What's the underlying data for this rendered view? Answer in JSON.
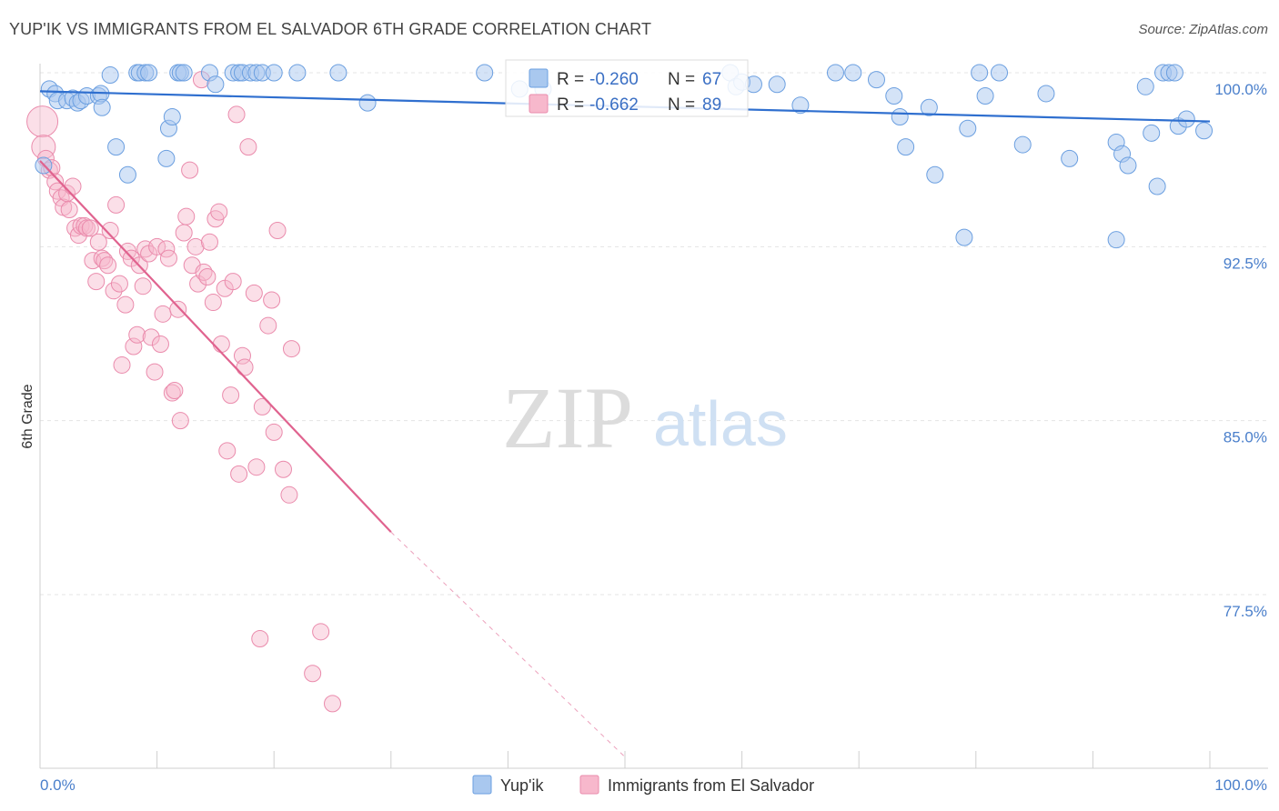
{
  "header": {
    "title": "YUP'IK VS IMMIGRANTS FROM EL SALVADOR 6TH GRADE CORRELATION CHART",
    "source": "Source: ZipAtlas.com"
  },
  "watermark": {
    "zip": "ZIP",
    "atlas": "atlas"
  },
  "legend": {
    "rows": [
      {
        "r_label": "R = ",
        "r_value": "-0.260",
        "n_label": "N = ",
        "n_value": "67",
        "color": "#6fa0e0"
      },
      {
        "r_label": "R = ",
        "r_value": "-0.662",
        "n_label": "N = ",
        "n_value": "89",
        "color": "#f08fb0"
      }
    ]
  },
  "colors": {
    "series_blue_fill": "#a9c8ef",
    "series_blue_stroke": "#6b9fe0",
    "series_blue_line": "#2f6fcf",
    "series_pink_fill": "#f7b8cc",
    "series_pink_stroke": "#ea8bac",
    "series_pink_line": "#e0638f",
    "tick": "#4a7fcb",
    "grid": "#e4e4e4"
  },
  "chart_data": {
    "type": "scatter",
    "title": "YUP'IK VS IMMIGRANTS FROM EL SALVADOR 6TH GRADE CORRELATION CHART",
    "xlabel": "",
    "ylabel": "6th Grade",
    "xlim": [
      0,
      100
    ],
    "ylim": [
      70.5,
      101.6
    ],
    "x_tick_labels": [
      "0.0%",
      "100.0%"
    ],
    "y_ticks": [
      100.0,
      92.5,
      85.0,
      77.5
    ],
    "y_tick_labels": [
      "100.0%",
      "92.5%",
      "85.0%",
      "77.5%"
    ],
    "grid": true,
    "legend_position": "top-center",
    "series": [
      {
        "name": "Yup'ik",
        "r": -0.26,
        "n": 67,
        "trend": {
          "x": [
            0,
            100
          ],
          "y": [
            99.2,
            97.9
          ]
        },
        "points": [
          [
            0.3,
            96.0
          ],
          [
            0.8,
            99.3
          ],
          [
            1.3,
            99.1
          ],
          [
            1.5,
            98.8
          ],
          [
            2.3,
            98.8
          ],
          [
            2.8,
            98.9
          ],
          [
            3.2,
            98.7
          ],
          [
            3.5,
            98.8
          ],
          [
            4.0,
            99.0
          ],
          [
            5.0,
            99.0
          ],
          [
            5.2,
            99.1
          ],
          [
            5.3,
            98.5
          ],
          [
            6.0,
            99.9
          ],
          [
            6.5,
            96.8
          ],
          [
            7.5,
            95.6
          ],
          [
            8.3,
            100.0
          ],
          [
            8.5,
            100.0
          ],
          [
            9.0,
            100.0
          ],
          [
            9.3,
            100.0
          ],
          [
            11.0,
            97.6
          ],
          [
            10.8,
            96.3
          ],
          [
            11.3,
            98.1
          ],
          [
            11.8,
            100.0
          ],
          [
            12.0,
            100.0
          ],
          [
            12.3,
            100.0
          ],
          [
            14.5,
            100.0
          ],
          [
            15.0,
            99.5
          ],
          [
            16.5,
            100.0
          ],
          [
            17.0,
            100.0
          ],
          [
            17.3,
            100.0
          ],
          [
            18.0,
            100.0
          ],
          [
            18.5,
            100.0
          ],
          [
            19.0,
            100.0
          ],
          [
            20.0,
            100.0
          ],
          [
            22.0,
            100.0
          ],
          [
            25.5,
            100.0
          ],
          [
            28.0,
            98.7
          ],
          [
            38.0,
            100.0
          ],
          [
            41.0,
            99.3
          ],
          [
            43.0,
            99.3
          ],
          [
            59.0,
            100.0
          ],
          [
            59.5,
            99.4
          ],
          [
            60.0,
            99.6
          ],
          [
            61.0,
            99.5
          ],
          [
            63.0,
            99.5
          ],
          [
            65.0,
            98.6
          ],
          [
            68.0,
            100.0
          ],
          [
            69.5,
            100.0
          ],
          [
            71.5,
            99.7
          ],
          [
            73.0,
            99.0
          ],
          [
            73.5,
            98.1
          ],
          [
            74.0,
            96.8
          ],
          [
            76.0,
            98.5
          ],
          [
            76.5,
            95.6
          ],
          [
            79.0,
            92.9
          ],
          [
            79.3,
            97.6
          ],
          [
            80.3,
            100.0
          ],
          [
            80.8,
            99.0
          ],
          [
            82.0,
            100.0
          ],
          [
            84.0,
            96.9
          ],
          [
            86.0,
            99.1
          ],
          [
            88.0,
            96.3
          ],
          [
            92.0,
            97.0
          ],
          [
            92.5,
            96.5
          ],
          [
            93.0,
            96.0
          ],
          [
            94.5,
            99.4
          ],
          [
            95.0,
            97.4
          ],
          [
            96.0,
            100.0
          ],
          [
            96.5,
            100.0
          ],
          [
            97.0,
            100.0
          ],
          [
            97.3,
            97.7
          ],
          [
            98.0,
            98.0
          ],
          [
            99.5,
            97.5
          ],
          [
            95.5,
            95.1
          ],
          [
            92.0,
            92.8
          ]
        ]
      },
      {
        "name": "Immigrants from El Salvador",
        "r": -0.662,
        "n": 89,
        "trend": {
          "x": [
            0,
            30
          ],
          "y": [
            96.2,
            80.2
          ],
          "dashed_to": {
            "x": 50,
            "y": 70.5
          }
        },
        "points": [
          [
            0.2,
            97.9
          ],
          [
            0.3,
            96.8
          ],
          [
            0.5,
            96.3
          ],
          [
            0.8,
            95.8
          ],
          [
            1.0,
            95.9
          ],
          [
            1.3,
            95.3
          ],
          [
            1.5,
            94.9
          ],
          [
            1.8,
            94.6
          ],
          [
            2.0,
            94.2
          ],
          [
            2.3,
            94.8
          ],
          [
            2.5,
            94.1
          ],
          [
            2.8,
            95.1
          ],
          [
            3.0,
            93.3
          ],
          [
            3.3,
            93.0
          ],
          [
            3.5,
            93.4
          ],
          [
            3.8,
            93.4
          ],
          [
            4.0,
            93.3
          ],
          [
            4.3,
            93.3
          ],
          [
            4.5,
            91.9
          ],
          [
            4.8,
            91.0
          ],
          [
            5.0,
            92.7
          ],
          [
            5.3,
            92.0
          ],
          [
            5.5,
            91.9
          ],
          [
            5.8,
            91.7
          ],
          [
            6.0,
            93.2
          ],
          [
            6.3,
            90.6
          ],
          [
            6.5,
            94.3
          ],
          [
            6.8,
            90.9
          ],
          [
            7.0,
            87.4
          ],
          [
            7.3,
            90.0
          ],
          [
            7.5,
            92.3
          ],
          [
            7.8,
            92.0
          ],
          [
            8.0,
            88.2
          ],
          [
            8.3,
            88.7
          ],
          [
            8.5,
            91.7
          ],
          [
            8.8,
            90.8
          ],
          [
            9.0,
            92.4
          ],
          [
            9.3,
            92.2
          ],
          [
            9.5,
            88.6
          ],
          [
            9.8,
            87.1
          ],
          [
            10.0,
            92.5
          ],
          [
            10.3,
            88.3
          ],
          [
            10.5,
            89.6
          ],
          [
            10.8,
            92.4
          ],
          [
            11.0,
            92.0
          ],
          [
            11.3,
            86.2
          ],
          [
            11.5,
            86.3
          ],
          [
            11.8,
            89.8
          ],
          [
            12.0,
            85.0
          ],
          [
            12.3,
            93.1
          ],
          [
            12.5,
            93.8
          ],
          [
            12.8,
            95.8
          ],
          [
            13.0,
            91.7
          ],
          [
            13.3,
            92.5
          ],
          [
            13.5,
            90.9
          ],
          [
            13.8,
            99.7
          ],
          [
            14.0,
            91.4
          ],
          [
            14.3,
            91.2
          ],
          [
            14.5,
            92.7
          ],
          [
            14.8,
            90.1
          ],
          [
            15.0,
            93.7
          ],
          [
            15.3,
            94.0
          ],
          [
            15.5,
            88.3
          ],
          [
            15.8,
            90.7
          ],
          [
            16.0,
            83.7
          ],
          [
            16.3,
            86.1
          ],
          [
            16.5,
            91.0
          ],
          [
            16.8,
            98.2
          ],
          [
            17.0,
            82.7
          ],
          [
            17.3,
            87.8
          ],
          [
            17.5,
            87.3
          ],
          [
            17.8,
            96.8
          ],
          [
            18.3,
            90.5
          ],
          [
            18.5,
            83.0
          ],
          [
            18.8,
            75.6
          ],
          [
            19.0,
            85.6
          ],
          [
            19.5,
            89.1
          ],
          [
            19.8,
            90.2
          ],
          [
            20.0,
            84.5
          ],
          [
            20.3,
            93.2
          ],
          [
            20.8,
            82.9
          ],
          [
            21.3,
            81.8
          ],
          [
            21.5,
            88.1
          ],
          [
            23.3,
            74.1
          ],
          [
            24.0,
            75.9
          ],
          [
            25.0,
            72.8
          ]
        ]
      }
    ]
  },
  "bottom_legend": {
    "items": [
      {
        "label": "Yup'ik"
      },
      {
        "label": "Immigrants from El Salvador"
      }
    ]
  }
}
